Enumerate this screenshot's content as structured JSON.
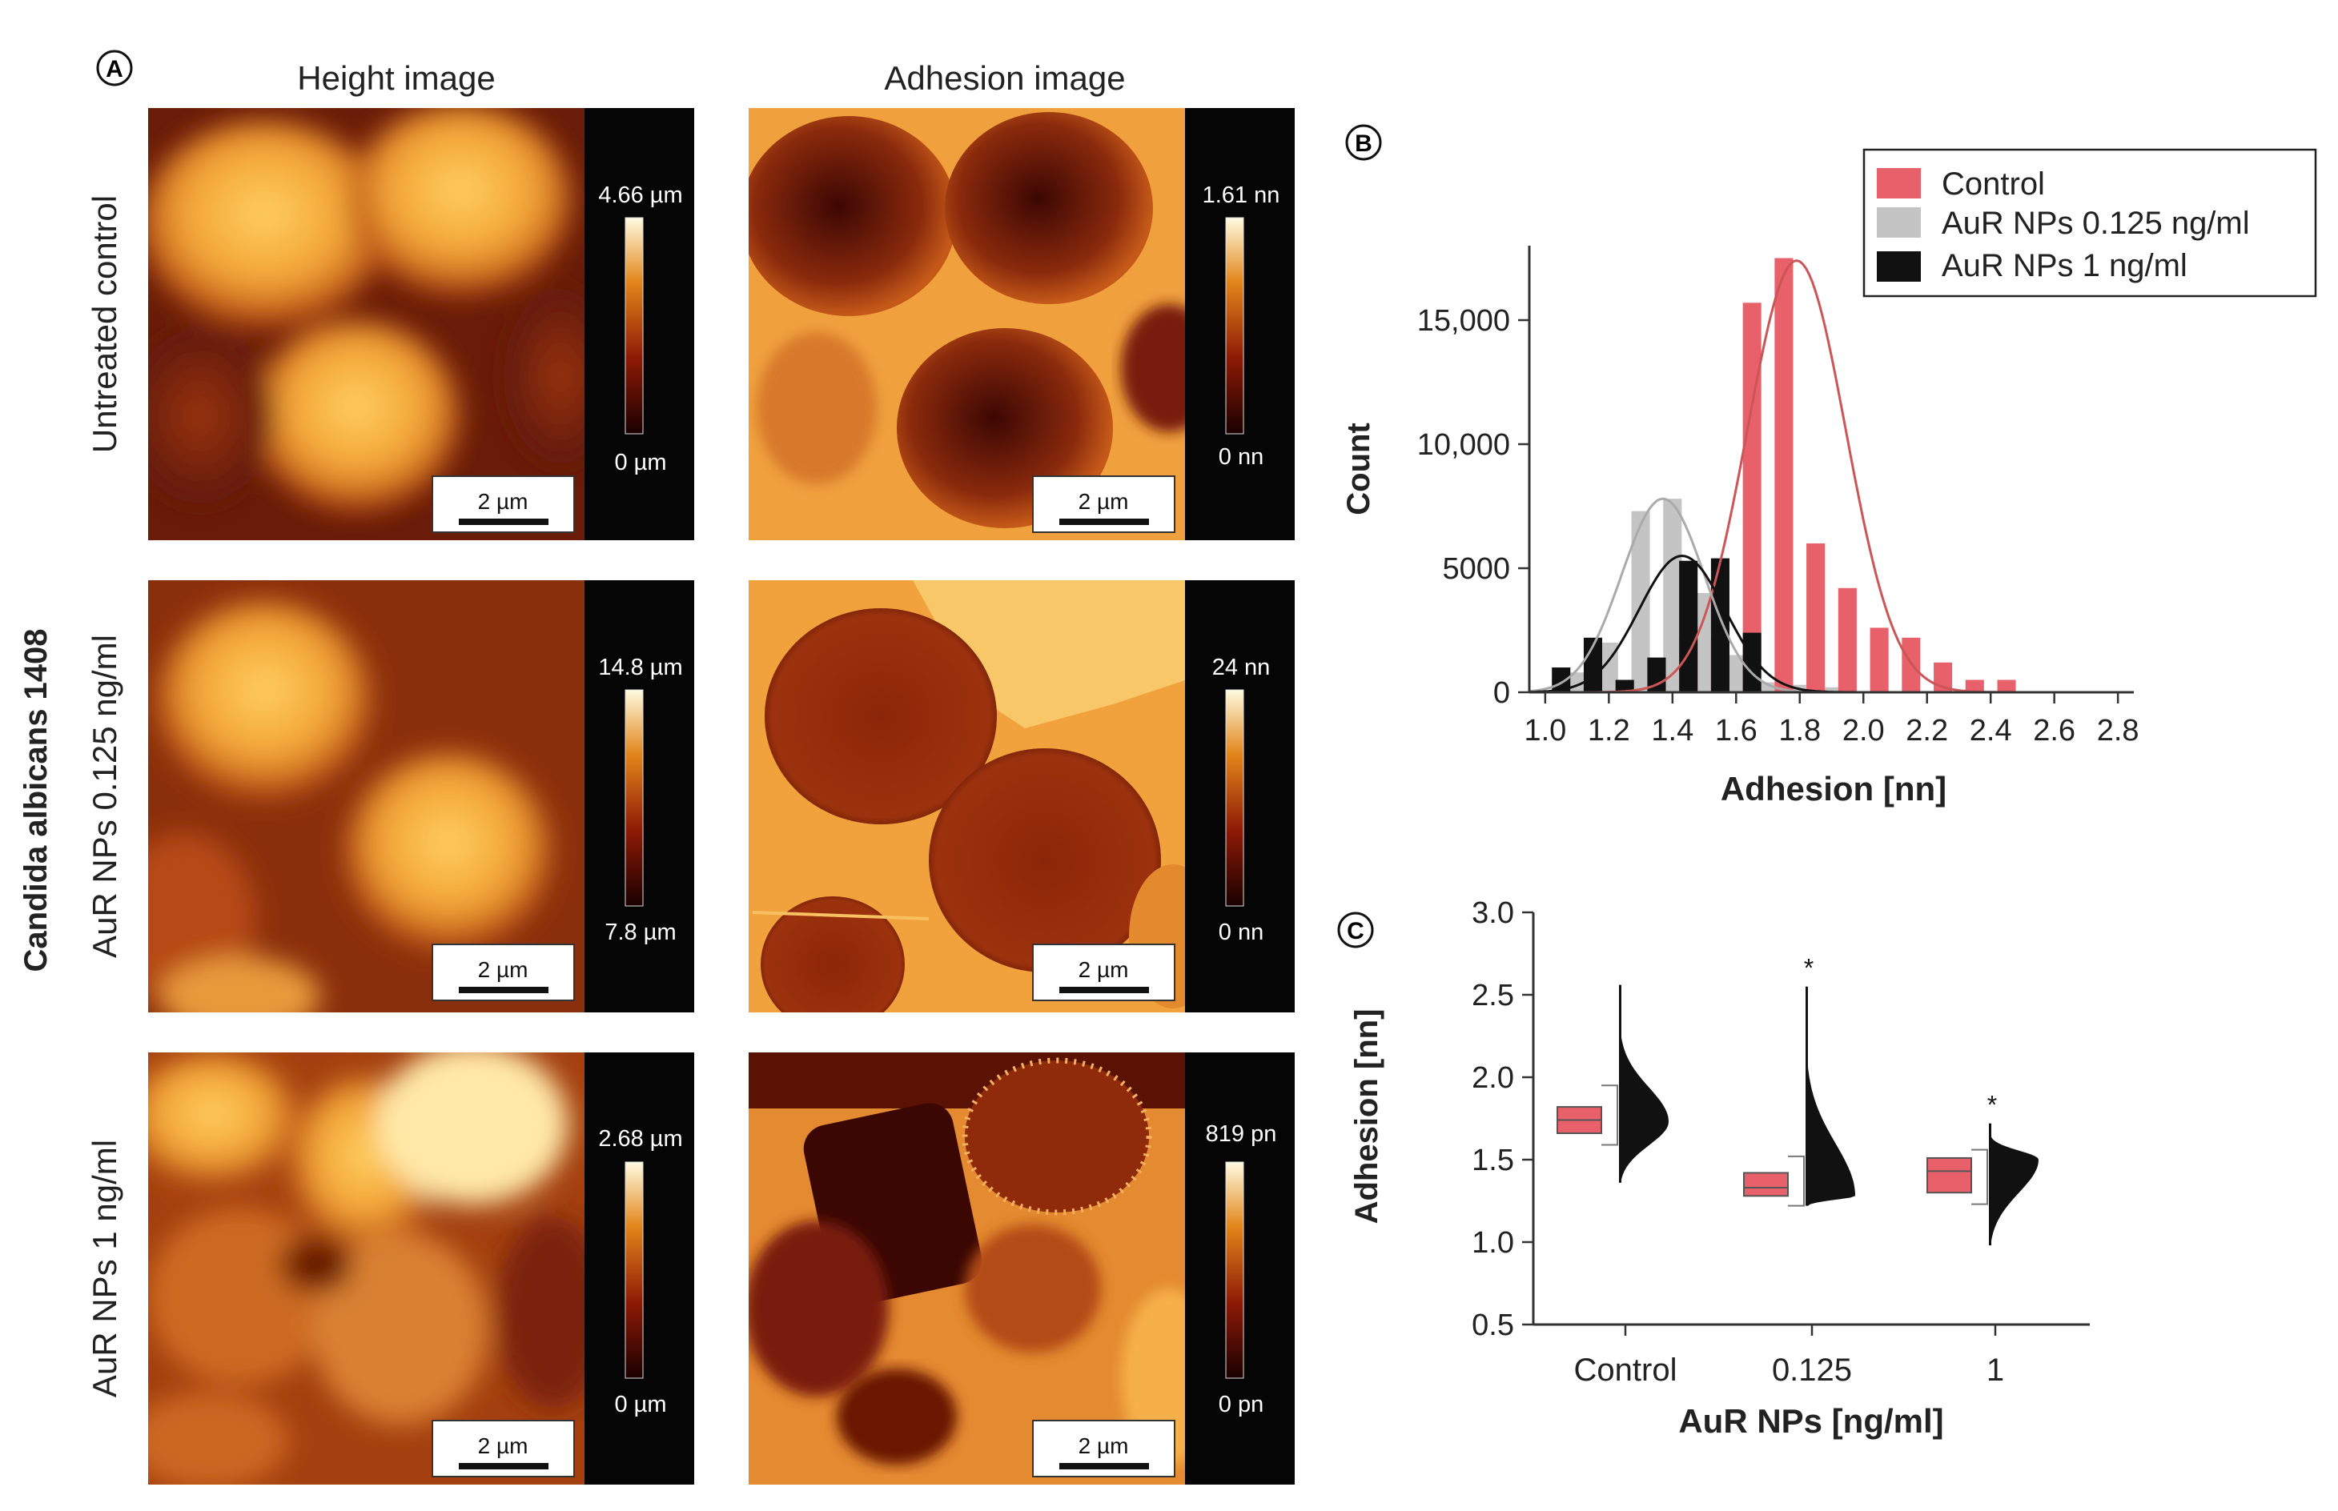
{
  "panel_labels": {
    "a": "A",
    "b": "B",
    "c": "C"
  },
  "columns": {
    "height": "Height image",
    "adhesion": "Adhesion image"
  },
  "side_label": "Candida albicans 1408",
  "rows": [
    {
      "label": "Untreated control",
      "height_max": "4.66 µm",
      "height_min": "0 µm",
      "adh_max": "1.61 nn",
      "adh_min": "0 nn"
    },
    {
      "label": "AuR NPs 0.125 ng/ml",
      "height_max": "14.8 µm",
      "height_min": "7.8 µm",
      "adh_max": "24 nn",
      "adh_min": "0 nn"
    },
    {
      "label": "AuR NPs 1 ng/ml",
      "height_max": "2.68 µm",
      "height_min": "0 µm",
      "adh_max": "819 pn",
      "adh_min": "0 pn"
    }
  ],
  "scalebar_label": "2 µm",
  "colors": {
    "control": "#e8606a",
    "low": "#c4c4c4",
    "high": "#111111",
    "fit_control": "#cc5555",
    "fit_low": "#aaaaaa",
    "fit_high": "#111111"
  },
  "chart_data": [
    {
      "type": "bar",
      "title": "",
      "xlabel": "Adhesion [nn]",
      "ylabel": "Count",
      "xlim": [
        0.95,
        2.85
      ],
      "ylim": [
        0,
        18000
      ],
      "x_ticks": [
        "1.0",
        "1.2",
        "1.4",
        "1.6",
        "1.8",
        "2.0",
        "2.2",
        "2.4",
        "2.6",
        "2.8"
      ],
      "y_ticks": [
        {
          "v": 0,
          "t": "0"
        },
        {
          "v": 5000,
          "t": "5000"
        },
        {
          "v": 10000,
          "t": "10,000"
        },
        {
          "v": 15000,
          "t": "15,000"
        }
      ],
      "legend": [
        "Control",
        "AuR NPs 0.125 ng/ml",
        "AuR NPs 1 ng/ml"
      ],
      "legend_position": "top-right",
      "series": [
        {
          "name": "Control",
          "x": [
            1.35,
            1.45,
            1.55,
            1.65,
            1.75,
            1.85,
            1.95,
            2.05,
            2.15,
            2.25,
            2.35,
            2.45
          ],
          "values": [
            300,
            2200,
            2200,
            15700,
            17500,
            6000,
            4200,
            2600,
            2200,
            1200,
            500,
            500
          ]
        },
        {
          "name": "AuR NPs 0.125 ng/ml",
          "x": [
            1.1,
            1.2,
            1.3,
            1.4,
            1.5,
            1.6,
            1.7,
            1.8,
            1.9
          ],
          "values": [
            800,
            2000,
            7300,
            7800,
            4000,
            1500,
            400,
            300,
            200
          ]
        },
        {
          "name": "AuR NPs 1 ng/ml",
          "x": [
            1.05,
            1.15,
            1.25,
            1.35,
            1.45,
            1.55,
            1.65
          ],
          "values": [
            1000,
            2200,
            500,
            1400,
            5300,
            5400,
            2400
          ]
        }
      ],
      "fits": [
        {
          "name": "Control",
          "mean": 1.79,
          "sd": 0.155,
          "peak": 17400
        },
        {
          "name": "AuR NPs 0.125 ng/ml",
          "mean": 1.37,
          "sd": 0.13,
          "peak": 7800
        },
        {
          "name": "AuR NPs 1 ng/ml",
          "mean": 1.43,
          "sd": 0.135,
          "peak": 5500
        }
      ]
    },
    {
      "type": "box",
      "xlabel": "AuR NPs [ng/ml]",
      "ylabel": "Adhesion [nn]",
      "ylim": [
        0.5,
        3.0
      ],
      "y_ticks": [
        "0.5",
        "1.0",
        "1.5",
        "2.0",
        "2.5",
        "3.0"
      ],
      "categories": [
        "Control",
        "0.125",
        "1"
      ],
      "boxes": [
        {
          "q1": 1.66,
          "median": 1.74,
          "q3": 1.82,
          "wmin": 1.59,
          "wmax": 1.95,
          "dist_min": 1.36,
          "dist_max": 2.56,
          "mode": 1.73,
          "marker": ""
        },
        {
          "q1": 1.28,
          "median": 1.33,
          "q3": 1.42,
          "wmin": 1.22,
          "wmax": 1.52,
          "dist_min": 1.22,
          "dist_max": 2.55,
          "mode": 1.28,
          "marker": "*"
        },
        {
          "q1": 1.3,
          "median": 1.43,
          "q3": 1.51,
          "wmin": 1.23,
          "wmax": 1.56,
          "dist_min": 0.98,
          "dist_max": 1.72,
          "mode": 1.5,
          "marker": "*"
        }
      ]
    }
  ]
}
